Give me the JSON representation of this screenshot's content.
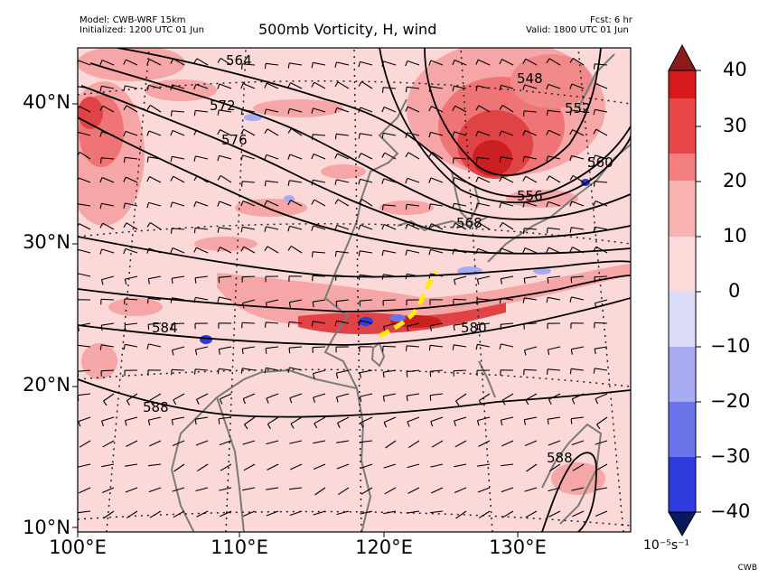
{
  "header": {
    "model": "Model: CWB-WRF 15km",
    "initialized": "Initialized: 1200 UTC 01 Jun",
    "title": "500mb Vorticity, H, wind",
    "fcst": "Fcst: 6 hr",
    "valid": "Valid: 1800 UTC 01 Jun"
  },
  "credit": "CWB",
  "map": {
    "lat_labels": [
      "40°N",
      "30°N",
      "20°N",
      "10°N"
    ],
    "lon_labels": [
      "100°E",
      "110°E",
      "120°E",
      "130°E"
    ],
    "contour_labels": [
      "564",
      "572",
      "576",
      "548",
      "552",
      "556",
      "560",
      "568",
      "584",
      "580",
      "588",
      "588"
    ],
    "background_color": "#fbd9d9",
    "coast_color": "#7a7a7a",
    "contour_color": "#000000",
    "front_color": "#ffee00"
  },
  "colorbar": {
    "ticks": [
      "40",
      "30",
      "20",
      "10",
      "0",
      "−10",
      "−20",
      "−30",
      "−40"
    ],
    "units": "10⁻⁵s⁻¹",
    "colors": [
      "#d7191c",
      "#e8474a",
      "#f47f80",
      "#f9b2b2",
      "#fddada",
      "#dadcf8",
      "#a7abf1",
      "#6a73e8",
      "#2f3bde",
      "#0a14c8"
    ]
  }
}
